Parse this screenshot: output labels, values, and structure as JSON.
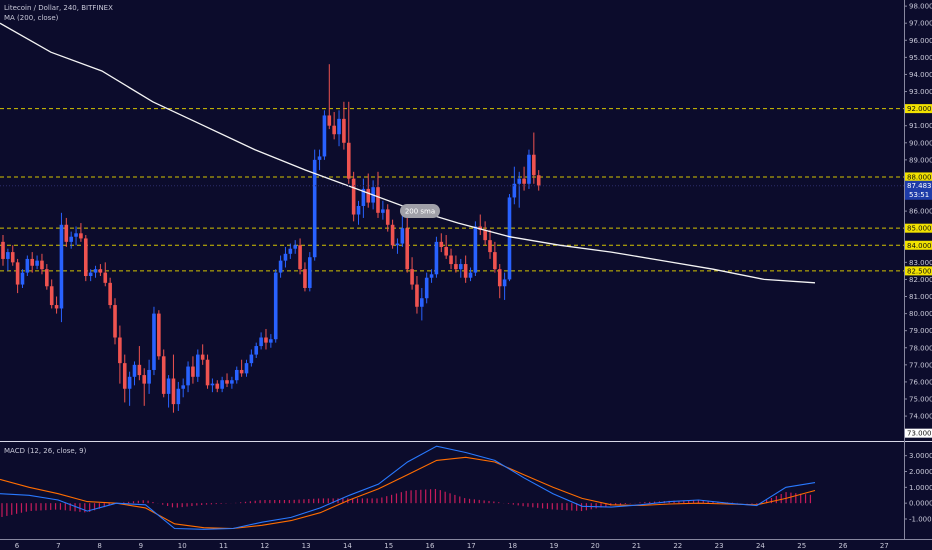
{
  "header": {
    "symbol_line": "Litecoin / Dollar, 240, BITFINEX",
    "ma_label": "MA (200, close)",
    "macd_label": "MACD (12, 26, close, 9)"
  },
  "annotation": {
    "text": "200 sma"
  },
  "colors": {
    "background": "#0c0c2c",
    "up": "#2962ff",
    "down": "#ef5350",
    "ma": "#f4f4f4",
    "macd_line": "#2979ff",
    "signal_line": "#ff6d00",
    "hist": "#e91e63",
    "level": "#d4c400",
    "price_tag": "#1e3ca8"
  },
  "chart_data": {
    "type": "candlestick",
    "x_ticks": [
      "6",
      "7",
      "8",
      "9",
      "10",
      "11",
      "12",
      "13",
      "14",
      "15",
      "16",
      "17",
      "18",
      "19",
      "20",
      "21",
      "22",
      "23",
      "24",
      "25",
      "26",
      "27"
    ],
    "price_axis": {
      "ticks": [
        "98.000",
        "97.000",
        "96.000",
        "95.000",
        "94.000",
        "93.000",
        "92.000",
        "91.000",
        "90.000",
        "89.000",
        "88.000",
        "87.000",
        "86.000",
        "85.000",
        "84.000",
        "83.000",
        "82.000",
        "81.000",
        "80.000",
        "79.000",
        "78.000",
        "77.000",
        "76.000",
        "75.000",
        "74.000",
        "73.000"
      ],
      "range": [
        72.6,
        98.3
      ]
    },
    "levels": [
      {
        "value": 92.0,
        "label": "92.000"
      },
      {
        "value": 88.0,
        "label": "88.000"
      },
      {
        "value": 85.0,
        "label": "85.000"
      },
      {
        "value": 84.0,
        "label": "84.000"
      },
      {
        "value": 82.5,
        "label": "82.500"
      }
    ],
    "current_price": {
      "value": 87.483,
      "label": "87.483",
      "countdown": "53:51"
    },
    "bottom_tag": "73.000",
    "ohlc": [
      [
        84.2,
        84.6,
        82.8,
        83.2
      ],
      [
        83.2,
        83.8,
        82.5,
        83.6
      ],
      [
        83.6,
        84.0,
        82.8,
        83.0
      ],
      [
        83.0,
        83.2,
        81.2,
        81.7
      ],
      [
        81.7,
        82.6,
        81.5,
        82.4
      ],
      [
        82.4,
        83.4,
        82.2,
        83.2
      ],
      [
        83.2,
        83.6,
        82.4,
        82.8
      ],
      [
        82.8,
        83.4,
        82.6,
        83.1
      ],
      [
        83.1,
        83.5,
        82.3,
        82.6
      ],
      [
        82.6,
        82.9,
        81.4,
        81.6
      ],
      [
        81.6,
        82.0,
        80.3,
        80.5
      ],
      [
        80.5,
        81.0,
        80.0,
        80.3
      ],
      [
        80.3,
        85.9,
        79.5,
        85.2
      ],
      [
        85.2,
        85.6,
        83.9,
        84.2
      ],
      [
        84.2,
        84.8,
        83.8,
        84.5
      ],
      [
        84.5,
        85.1,
        84.0,
        84.7
      ],
      [
        84.7,
        85.3,
        84.2,
        84.4
      ],
      [
        84.4,
        84.6,
        81.9,
        82.2
      ],
      [
        82.2,
        82.6,
        81.9,
        82.4
      ],
      [
        82.4,
        82.8,
        82.1,
        82.6
      ],
      [
        82.6,
        82.9,
        82.2,
        82.4
      ],
      [
        82.4,
        83.0,
        81.6,
        81.8
      ],
      [
        81.8,
        82.1,
        80.3,
        80.5
      ],
      [
        80.5,
        80.9,
        78.2,
        78.6
      ],
      [
        78.6,
        79.3,
        75.9,
        77.1
      ],
      [
        77.1,
        77.6,
        74.8,
        75.6
      ],
      [
        75.6,
        76.6,
        74.6,
        76.3
      ],
      [
        76.3,
        77.2,
        75.8,
        77.0
      ],
      [
        77.0,
        78.1,
        76.1,
        76.4
      ],
      [
        76.4,
        76.8,
        74.6,
        75.9
      ],
      [
        75.9,
        77.3,
        75.3,
        76.7
      ],
      [
        76.7,
        80.4,
        76.4,
        80.0
      ],
      [
        80.0,
        80.2,
        77.3,
        77.5
      ],
      [
        77.5,
        77.9,
        75.1,
        75.3
      ],
      [
        75.3,
        76.4,
        74.5,
        76.2
      ],
      [
        76.2,
        77.6,
        74.2,
        74.7
      ],
      [
        74.7,
        76.0,
        74.3,
        75.6
      ],
      [
        75.6,
        76.2,
        75.1,
        75.8
      ],
      [
        75.8,
        77.2,
        75.4,
        76.9
      ],
      [
        76.9,
        77.5,
        75.9,
        76.3
      ],
      [
        76.3,
        77.9,
        76.0,
        77.6
      ],
      [
        77.6,
        78.2,
        77.0,
        77.3
      ],
      [
        77.3,
        77.6,
        75.6,
        75.8
      ],
      [
        75.8,
        76.2,
        75.4,
        75.9
      ],
      [
        75.9,
        76.1,
        75.4,
        75.6
      ],
      [
        75.6,
        76.3,
        75.4,
        76.1
      ],
      [
        76.1,
        76.5,
        75.7,
        75.9
      ],
      [
        75.9,
        76.3,
        75.6,
        76.1
      ],
      [
        76.1,
        76.9,
        75.9,
        76.7
      ],
      [
        76.7,
        77.3,
        76.3,
        76.5
      ],
      [
        76.5,
        77.3,
        76.3,
        77.1
      ],
      [
        77.1,
        77.9,
        76.9,
        77.6
      ],
      [
        77.6,
        78.3,
        77.4,
        78.1
      ],
      [
        78.1,
        78.9,
        77.9,
        78.6
      ],
      [
        78.6,
        79.1,
        77.9,
        78.3
      ],
      [
        78.3,
        78.8,
        78.0,
        78.5
      ],
      [
        78.5,
        82.6,
        78.3,
        82.4
      ],
      [
        82.4,
        83.4,
        82.1,
        83.1
      ],
      [
        83.1,
        83.9,
        82.7,
        83.5
      ],
      [
        83.5,
        84.1,
        83.2,
        83.8
      ],
      [
        83.8,
        84.3,
        83.5,
        84.0
      ],
      [
        84.0,
        84.4,
        82.3,
        82.6
      ],
      [
        82.6,
        83.0,
        81.3,
        81.5
      ],
      [
        81.5,
        83.6,
        81.3,
        83.3
      ],
      [
        83.3,
        89.6,
        83.1,
        89.0
      ],
      [
        89.0,
        89.6,
        88.4,
        89.2
      ],
      [
        89.2,
        91.9,
        89.0,
        91.6
      ],
      [
        91.6,
        94.6,
        90.8,
        91.0
      ],
      [
        91.0,
        91.8,
        90.2,
        90.5
      ],
      [
        90.5,
        91.9,
        89.8,
        91.4
      ],
      [
        91.4,
        92.4,
        89.6,
        90.0
      ],
      [
        90.0,
        92.4,
        87.6,
        87.9
      ],
      [
        87.9,
        88.3,
        85.4,
        85.8
      ],
      [
        85.8,
        86.6,
        85.2,
        86.3
      ],
      [
        86.3,
        87.9,
        85.6,
        87.3
      ],
      [
        87.3,
        88.2,
        86.2,
        86.5
      ],
      [
        86.5,
        87.8,
        86.1,
        87.4
      ],
      [
        87.4,
        88.3,
        85.6,
        85.9
      ],
      [
        85.9,
        86.6,
        85.5,
        86.1
      ],
      [
        86.1,
        86.4,
        84.8,
        85.2
      ],
      [
        85.2,
        85.5,
        83.8,
        84.0
      ],
      [
        84.0,
        84.4,
        83.5,
        84.1
      ],
      [
        84.1,
        85.7,
        83.9,
        85.0
      ],
      [
        85.0,
        86.3,
        82.4,
        82.6
      ],
      [
        82.6,
        83.3,
        81.4,
        81.7
      ],
      [
        81.7,
        82.2,
        80.0,
        80.4
      ],
      [
        80.4,
        81.5,
        79.6,
        80.9
      ],
      [
        80.9,
        82.4,
        80.6,
        82.1
      ],
      [
        82.1,
        82.6,
        81.8,
        82.3
      ],
      [
        82.3,
        84.5,
        82.1,
        84.2
      ],
      [
        84.2,
        84.7,
        83.6,
        83.9
      ],
      [
        83.9,
        84.6,
        83.2,
        83.4
      ],
      [
        83.4,
        83.8,
        82.6,
        82.9
      ],
      [
        82.9,
        83.4,
        82.4,
        82.6
      ],
      [
        82.6,
        83.2,
        82.1,
        82.9
      ],
      [
        82.9,
        83.4,
        81.8,
        82.1
      ],
      [
        82.1,
        82.7,
        81.9,
        82.4
      ],
      [
        82.4,
        85.4,
        82.2,
        85.1
      ],
      [
        85.1,
        85.8,
        84.6,
        84.9
      ],
      [
        84.9,
        85.4,
        84.0,
        84.3
      ],
      [
        84.3,
        84.9,
        83.2,
        83.6
      ],
      [
        83.6,
        84.2,
        82.4,
        82.6
      ],
      [
        82.6,
        82.9,
        80.9,
        81.6
      ],
      [
        81.6,
        82.4,
        80.8,
        82.0
      ],
      [
        82.0,
        87.0,
        81.9,
        86.8
      ],
      [
        86.8,
        88.6,
        86.4,
        87.6
      ],
      [
        87.6,
        88.3,
        86.2,
        87.9
      ],
      [
        87.9,
        88.6,
        87.2,
        87.6
      ],
      [
        87.6,
        89.6,
        87.3,
        89.3
      ],
      [
        89.3,
        90.6,
        87.6,
        88.1
      ],
      [
        88.1,
        88.4,
        87.2,
        87.5
      ]
    ],
    "ma200": [
      97.0,
      95.3,
      94.2,
      92.4,
      91.0,
      89.6,
      88.4,
      87.3,
      86.2,
      85.3,
      84.5,
      84.0,
      83.6,
      83.1,
      82.6,
      82.0,
      81.8
    ],
    "macd_axis": {
      "ticks": [
        "3.0000",
        "2.0000",
        "1.0000",
        "0.0000",
        "-1.0000"
      ],
      "range": [
        -2.2,
        3.8
      ]
    },
    "macd_line": [
      0.6,
      0.5,
      0.2,
      -0.5,
      0.0,
      -0.1,
      -1.6,
      -1.65,
      -1.6,
      -1.2,
      -0.9,
      -0.3,
      0.5,
      1.2,
      2.6,
      3.6,
      3.2,
      2.7,
      1.6,
      0.6,
      -0.2,
      -0.25,
      -0.1,
      0.1,
      0.2,
      0.0,
      -0.15,
      1.0,
      1.3
    ],
    "signal_line": [
      1.5,
      1.0,
      0.6,
      0.1,
      0.0,
      -0.3,
      -1.3,
      -1.55,
      -1.6,
      -1.4,
      -1.1,
      -0.6,
      0.2,
      0.9,
      1.8,
      2.7,
      2.9,
      2.6,
      1.8,
      1.0,
      0.3,
      -0.1,
      -0.15,
      -0.05,
      0.0,
      -0.05,
      -0.1,
      0.3,
      0.8
    ]
  }
}
